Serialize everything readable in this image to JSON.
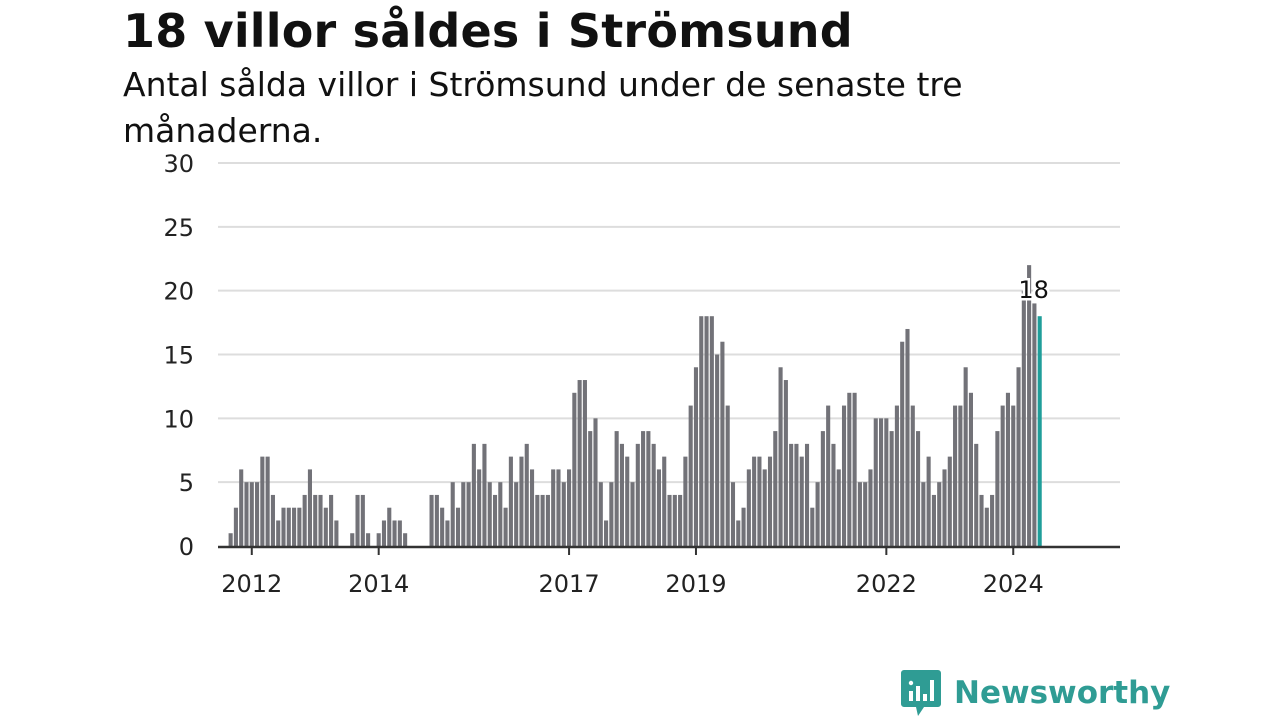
{
  "title": "18 villor såldes i Strömsund",
  "subtitle": "Antal sålda villor i Strömsund under de senaste tre månaderna.",
  "brand": {
    "name": "Newsworthy",
    "icon": "newsworthy-logo-icon",
    "color": "#2f9c94"
  },
  "colors": {
    "bar": "#727278",
    "highlight": "#1f9e9a",
    "grid": "#dddddd",
    "axis": "#333333"
  },
  "chart_data": {
    "type": "bar",
    "title": "18 villor såldes i Strömsund",
    "subtitle": "Antal sålda villor i Strömsund under de senaste tre månaderna.",
    "xlabel": "",
    "ylabel": "",
    "ylim": [
      0,
      30
    ],
    "yticks": [
      0,
      5,
      10,
      15,
      20,
      25,
      30
    ],
    "xtick_labels": [
      "2012",
      "2014",
      "2017",
      "2019",
      "2022",
      "2024"
    ],
    "grid": true,
    "highlight_label": "18",
    "highlight_value": 18,
    "x_start": "2012-01",
    "values": [
      0,
      0,
      1,
      3,
      6,
      5,
      5,
      5,
      7,
      7,
      4,
      2,
      3,
      3,
      3,
      3,
      4,
      6,
      4,
      4,
      3,
      4,
      2,
      0,
      0,
      1,
      4,
      4,
      1,
      0,
      1,
      2,
      3,
      2,
      2,
      1,
      0,
      0,
      0,
      0,
      4,
      4,
      3,
      2,
      5,
      3,
      5,
      5,
      8,
      6,
      8,
      5,
      4,
      5,
      3,
      7,
      5,
      7,
      8,
      6,
      4,
      4,
      4,
      6,
      6,
      5,
      6,
      12,
      13,
      13,
      9,
      10,
      5,
      2,
      5,
      9,
      8,
      7,
      5,
      8,
      9,
      9,
      8,
      6,
      7,
      4,
      4,
      4,
      7,
      11,
      14,
      18,
      18,
      18,
      15,
      16,
      11,
      5,
      2,
      3,
      6,
      7,
      7,
      6,
      7,
      9,
      14,
      13,
      8,
      8,
      7,
      8,
      3,
      5,
      9,
      11,
      8,
      6,
      11,
      12,
      12,
      5,
      5,
      6,
      10,
      10,
      10,
      9,
      11,
      16,
      17,
      11,
      9,
      5,
      7,
      4,
      5,
      6,
      7,
      11,
      11,
      14,
      12,
      8,
      4,
      3,
      4,
      9,
      11,
      12,
      11,
      14,
      20,
      22,
      19,
      18
    ]
  }
}
